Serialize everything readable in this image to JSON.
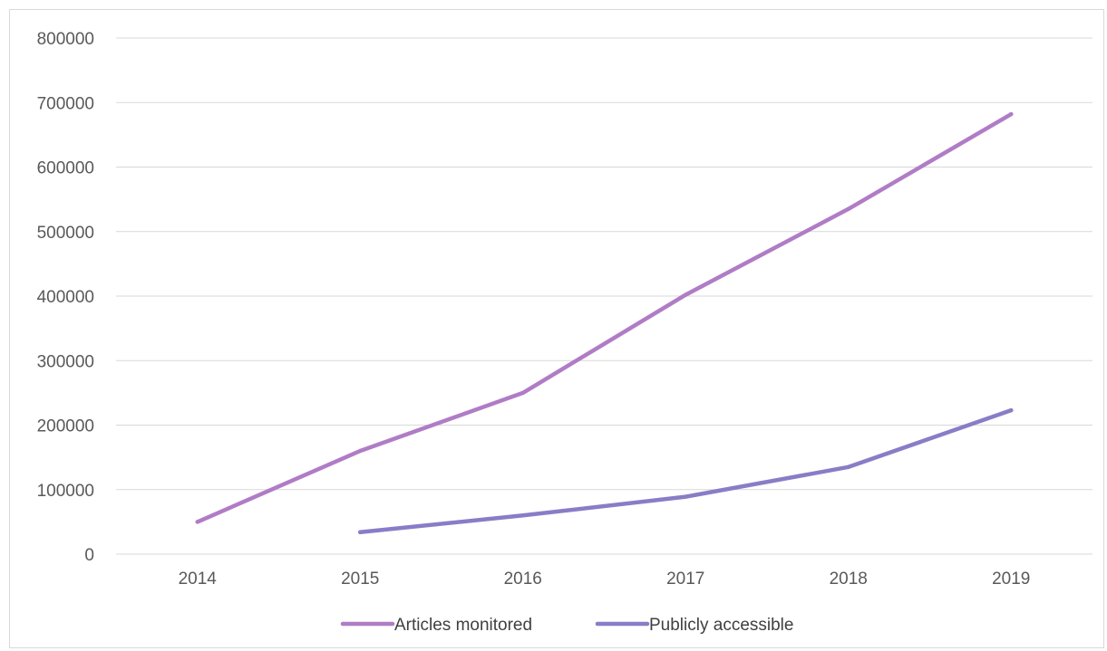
{
  "chart_data": {
    "type": "line",
    "categories": [
      "2014",
      "2015",
      "2016",
      "2017",
      "2018",
      "2019"
    ],
    "ylim": [
      0,
      800000
    ],
    "yticks": [
      0,
      100000,
      200000,
      300000,
      400000,
      500000,
      600000,
      700000,
      800000
    ],
    "ytick_labels": [
      "0",
      "100000",
      "200000",
      "300000",
      "400000",
      "500000",
      "600000",
      "700000",
      "800000"
    ],
    "grid": true,
    "legend_position": "bottom",
    "series": [
      {
        "name": "Articles monitored",
        "color": "#b07cc6",
        "values": [
          50000,
          160000,
          250000,
          402000,
          535000,
          682000
        ]
      },
      {
        "name": "Publicly accessible",
        "color": "#8a7cc6",
        "values": [
          null,
          34000,
          60000,
          89000,
          135000,
          223000
        ]
      }
    ]
  }
}
